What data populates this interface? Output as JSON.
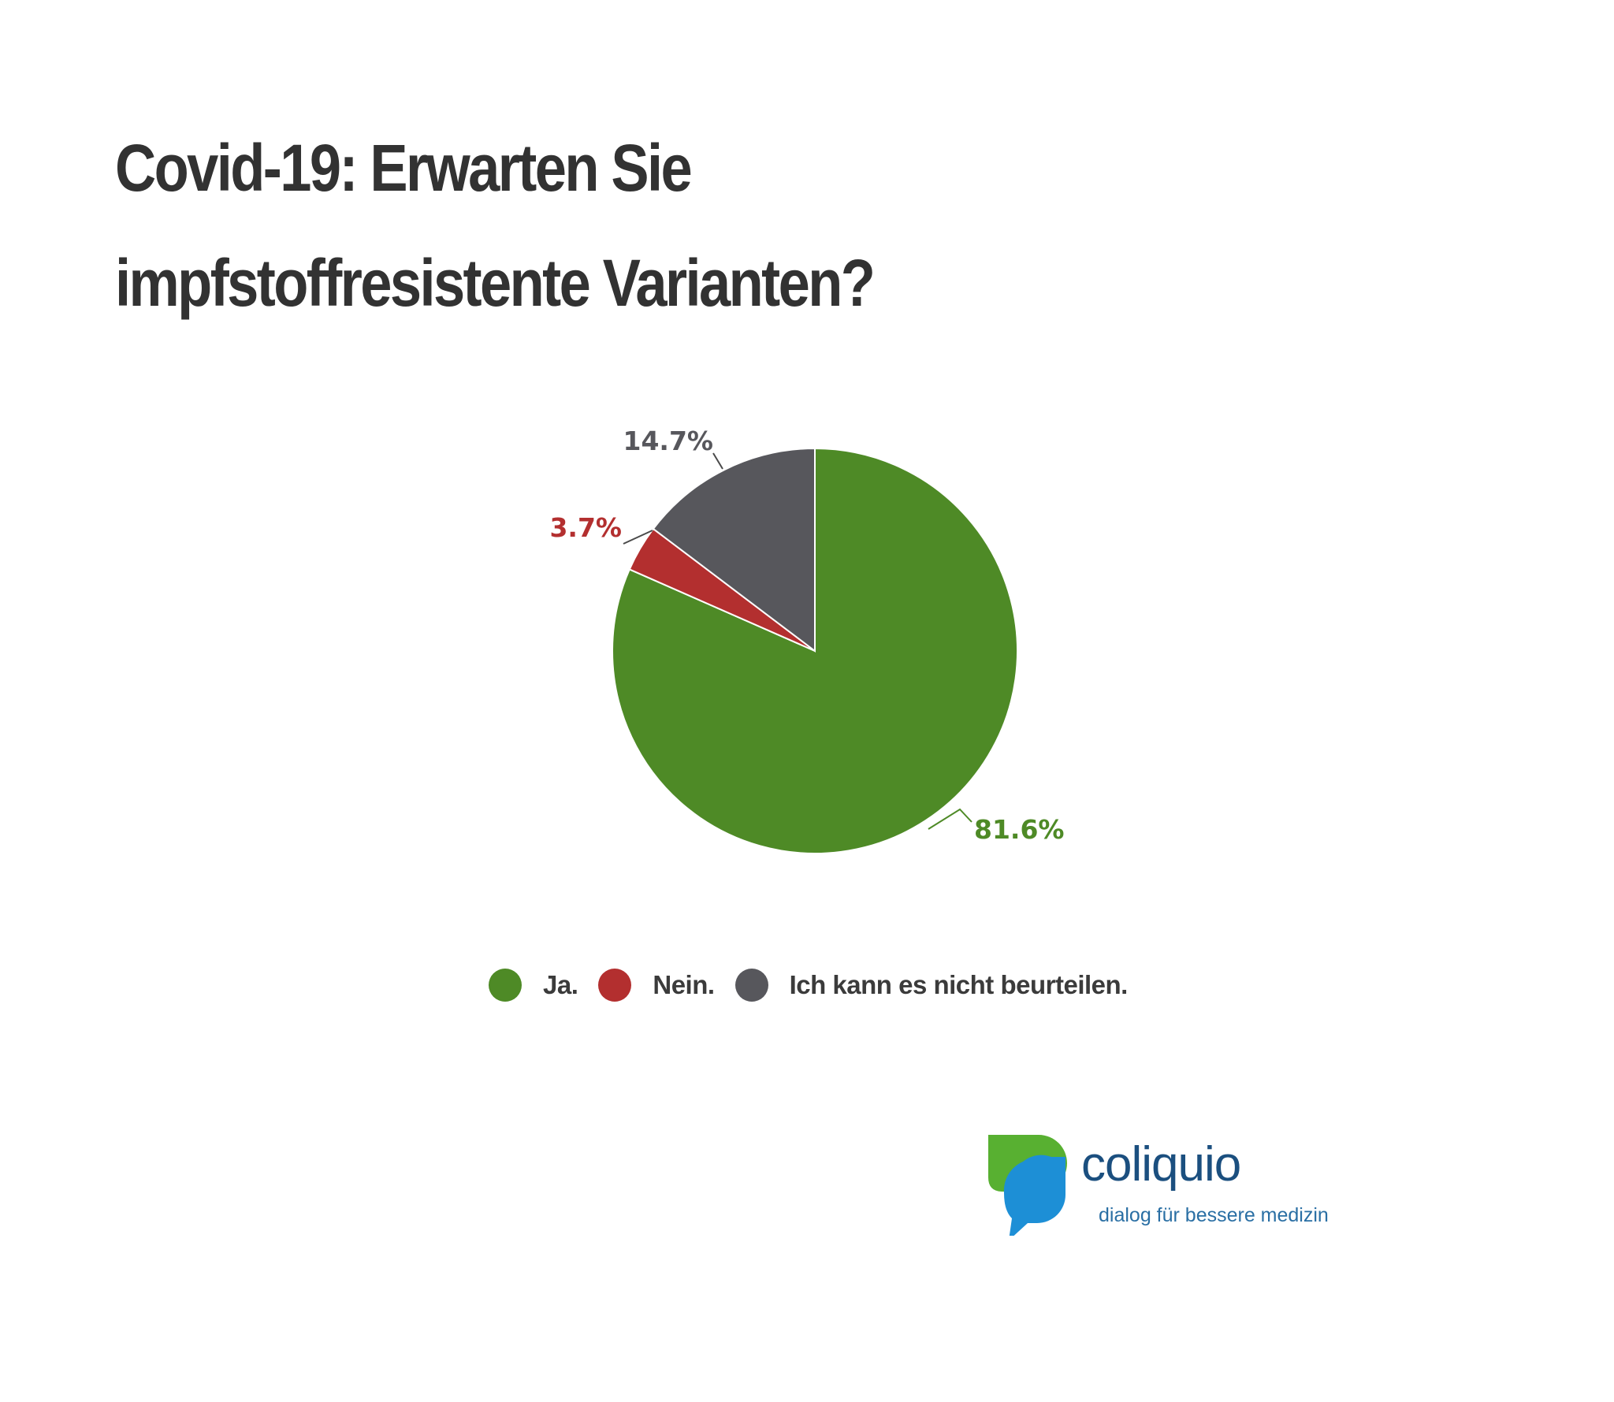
{
  "title": "Covid-19: Erwarten Sie impfstoffresistente Varianten?",
  "chart_data": {
    "type": "pie",
    "title": "Covid-19: Erwarten Sie impfstoffresistente Varianten?",
    "series": [
      {
        "name": "Ja.",
        "value": 81.6,
        "label": "81.6%",
        "color": "#4e8a26"
      },
      {
        "name": "Nein.",
        "value": 3.7,
        "label": "3.7%",
        "color": "#b32f2f"
      },
      {
        "name": "Ich kann es nicht beurteilen.",
        "value": 14.7,
        "label": "14.7%",
        "color": "#57575c"
      }
    ],
    "legend_position": "bottom",
    "start_angle": "12 o'clock, clockwise"
  },
  "legend": {
    "items": [
      {
        "label": "Ja.",
        "color": "#4e8a26"
      },
      {
        "label": "Nein.",
        "color": "#b32f2f"
      },
      {
        "label": "Ich kann es nicht beurteilen.",
        "color": "#57575c"
      }
    ]
  },
  "logo": {
    "name": "coliquio",
    "tagline": "dialog für bessere medizin",
    "colors": {
      "green": "#58b031",
      "blue": "#1d8fd6",
      "text": "#1b4f7f"
    }
  }
}
